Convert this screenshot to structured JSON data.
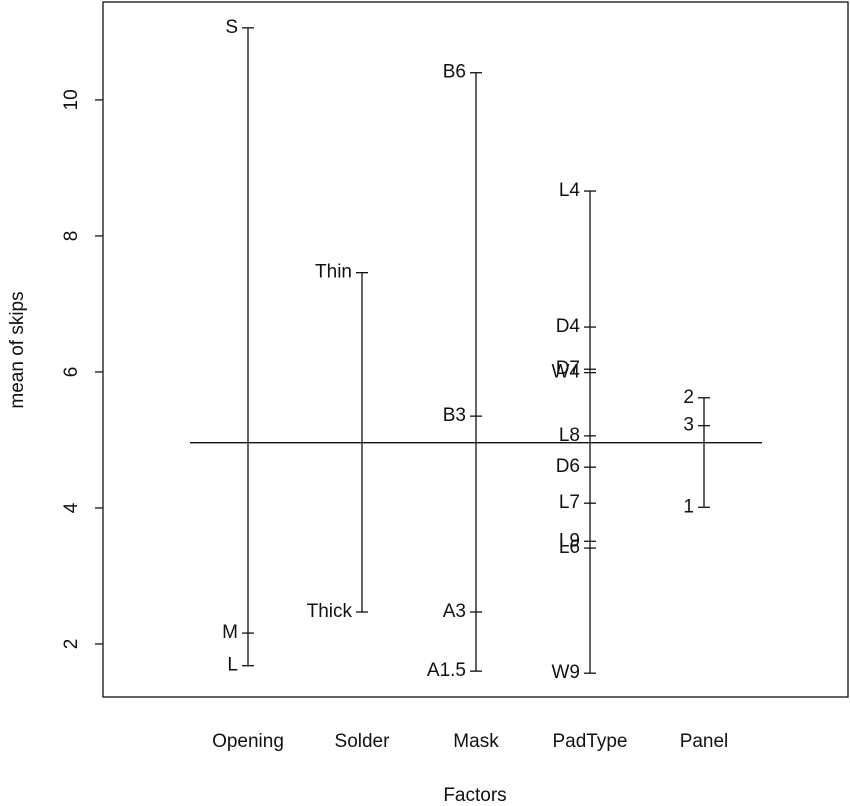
{
  "chart_data": {
    "type": "design",
    "x_label": "Factors",
    "y_label": "mean of skips",
    "ylim": [
      1.22,
      11.44
    ],
    "yticks": [
      2,
      4,
      6,
      8,
      10
    ],
    "grand_mean": 4.96,
    "factors": [
      {
        "name": "Opening",
        "levels": [
          "S",
          "M",
          "L"
        ],
        "values": [
          11.06,
          2.16,
          1.68
        ]
      },
      {
        "name": "Solder",
        "levels": [
          "Thin",
          "Thick"
        ],
        "values": [
          7.46,
          2.47
        ]
      },
      {
        "name": "Mask",
        "levels": [
          "B6",
          "B3",
          "A3",
          "A1.5"
        ],
        "values": [
          10.4,
          5.35,
          2.47,
          1.6
        ]
      },
      {
        "name": "PadType",
        "levels": [
          "L4",
          "D4",
          "D7",
          "W4",
          "L8",
          "D6",
          "L7",
          "L9",
          "L6",
          "W9"
        ],
        "values": [
          8.66,
          6.66,
          6.04,
          5.99,
          5.06,
          4.6,
          4.07,
          3.51,
          3.41,
          1.57
        ]
      },
      {
        "name": "Panel",
        "levels": [
          "2",
          "3",
          "1"
        ],
        "values": [
          5.62,
          5.21,
          4.01
        ]
      }
    ]
  }
}
